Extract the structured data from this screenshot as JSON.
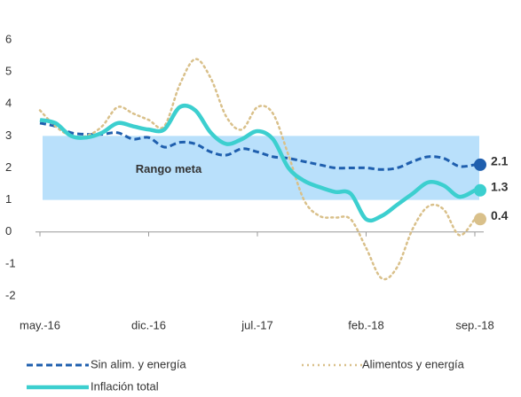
{
  "chart_data": {
    "type": "line",
    "categories": [
      "may.-16",
      null,
      null,
      null,
      null,
      null,
      null,
      "dic.-16",
      null,
      null,
      null,
      null,
      null,
      null,
      "jul.-17",
      null,
      null,
      null,
      null,
      null,
      null,
      "feb.-18",
      null,
      null,
      null,
      null,
      null,
      null,
      "sep.-18"
    ],
    "ylim": [
      -2,
      6
    ],
    "yticks": [
      -2,
      -1,
      0,
      1,
      2,
      3,
      4,
      5,
      6
    ],
    "band": {
      "label": "Rango meta",
      "from": 1,
      "to": 3,
      "color": "#b9e0fb"
    },
    "series": [
      {
        "name": "Sin alim. y energía",
        "color": "#1f5fae",
        "style": "dashed",
        "values": [
          3.4,
          3.3,
          3.1,
          3.05,
          3.05,
          3.1,
          2.9,
          2.95,
          2.65,
          2.8,
          2.75,
          2.5,
          2.4,
          2.6,
          2.5,
          2.35,
          2.3,
          2.2,
          2.1,
          2.0,
          2.0,
          2.0,
          1.95,
          2.0,
          2.2,
          2.35,
          2.3,
          2.05,
          2.1
        ]
      },
      {
        "name": "Alimentos y energía",
        "color": "#d9c08a",
        "style": "dotted",
        "values": [
          3.8,
          3.3,
          3.0,
          3.0,
          3.3,
          3.9,
          3.7,
          3.5,
          3.3,
          4.6,
          5.4,
          4.8,
          3.6,
          3.2,
          3.9,
          3.7,
          2.4,
          1.0,
          0.5,
          0.45,
          0.4,
          -0.5,
          -1.45,
          -1.1,
          0.1,
          0.8,
          0.7,
          -0.1,
          0.4
        ]
      },
      {
        "name": "Inflación total",
        "color": "#3ccfcf",
        "style": "solid",
        "values": [
          3.5,
          3.4,
          3.0,
          2.95,
          3.1,
          3.4,
          3.3,
          3.2,
          3.2,
          3.9,
          3.8,
          3.1,
          2.75,
          2.9,
          3.15,
          2.9,
          2.0,
          1.6,
          1.4,
          1.25,
          1.2,
          0.4,
          0.5,
          0.85,
          1.2,
          1.55,
          1.45,
          1.1,
          1.3
        ]
      }
    ]
  }
}
